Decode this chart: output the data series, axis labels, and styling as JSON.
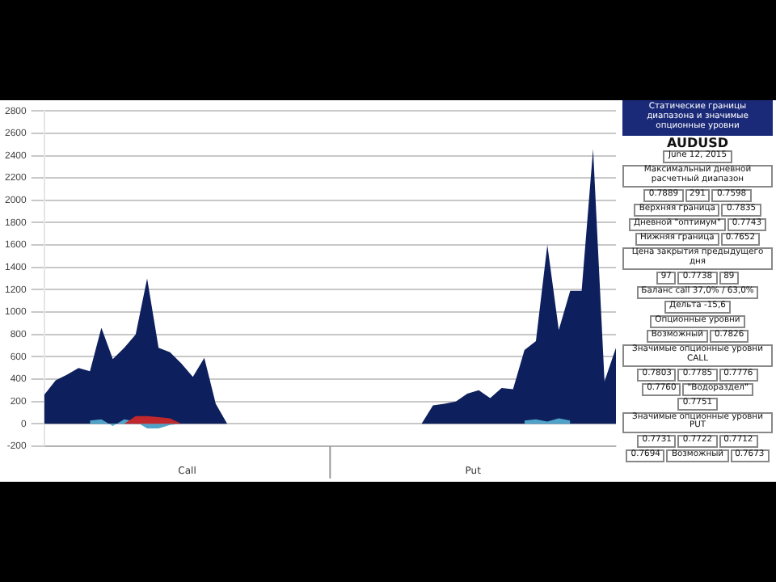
{
  "chart_data": [
    {
      "type": "area",
      "categories": [
        null,
        null,
        null,
        null,
        null,
        null,
        null,
        null,
        null,
        null,
        null,
        null,
        null,
        null,
        null,
        null,
        null,
        null,
        null,
        null,
        null,
        null,
        null,
        null,
        null,
        null,
        null,
        null,
        null,
        null,
        null,
        null,
        null,
        null,
        null,
        null,
        null,
        null,
        null,
        null,
        null,
        null,
        null,
        null,
        null,
        null,
        null,
        null,
        null,
        null,
        null
      ],
      "series": [
        {
          "color": "#0d1f5c",
          "values": [
            260,
            390,
            440,
            500,
            470,
            860,
            580,
            680,
            800,
            1300,
            680,
            640,
            540,
            420,
            590,
            180,
            0,
            0,
            0,
            0,
            0,
            0,
            0,
            0,
            0,
            0,
            0,
            0,
            0,
            0,
            0,
            0,
            0,
            0,
            165,
            180,
            200,
            270,
            300,
            230,
            320,
            310,
            660,
            740,
            1600,
            840,
            1190,
            1190,
            2460,
            380,
            680
          ]
        },
        {
          "color": "#4fa3c8",
          "values": [
            null,
            null,
            null,
            null,
            30,
            40,
            -20,
            40,
            20,
            -40,
            -40,
            -10,
            0,
            null,
            null,
            null,
            null,
            null,
            null,
            null,
            null,
            null,
            null,
            null,
            null,
            null,
            null,
            null,
            null,
            null,
            null,
            null,
            null,
            null,
            null,
            null,
            null,
            null,
            null,
            null,
            null,
            null,
            30,
            40,
            20,
            50,
            30,
            null,
            null,
            null,
            null
          ]
        },
        {
          "color": "#c0282d",
          "values": [
            null,
            null,
            null,
            null,
            null,
            null,
            null,
            0,
            70,
            70,
            60,
            50,
            0,
            null,
            null,
            null,
            null,
            null,
            null,
            null,
            null,
            null,
            null,
            null,
            null,
            null,
            null,
            null,
            null,
            null,
            null,
            null,
            null,
            null,
            null,
            null,
            null,
            null,
            null,
            null,
            null,
            null,
            null,
            null,
            null,
            null,
            null,
            null,
            null,
            null,
            null
          ]
        }
      ],
      "ylim": [
        -200,
        2800
      ],
      "yticks": [
        -200,
        0,
        200,
        400,
        600,
        800,
        1000,
        1200,
        1400,
        1600,
        1800,
        2000,
        2200,
        2400,
        2600,
        2800
      ],
      "grid": "y",
      "legend": false,
      "tick_labels": "y",
      "annotations": [
        "Call",
        "Put"
      ]
    },
    {
      "type": "other",
      "title": "Статические границы диапазона и значимые опционные уровни",
      "subtitle": "AUDUSD",
      "annotations": [
        "June 12, 2015",
        "Максимальный дневной расчетный диапазон",
        "0.7889",
        "291",
        "0.7598",
        "Верхняя граница",
        "0.7835",
        "Дневной \"оптимум\"",
        "0.7743",
        "Нижняя граница",
        "0.7652",
        "Цена закрытия предыдущего дня",
        "97",
        "0.7738",
        "89",
        "Баланс call 37,0% / 63,0%",
        "Дельта -15,6",
        "Опционные уровни",
        "Возможный",
        "0.7826",
        "Значимые опционные уровни CALL",
        "0.7803",
        "0.7785",
        "0.7776",
        "0.7760",
        "\"Водораздел\"",
        "0.7751",
        "Значимые опционные уровни PUT",
        "0.7731",
        "0.7722",
        "0.7712",
        "0.7694",
        "Возможный",
        "0.7673"
      ]
    }
  ]
}
